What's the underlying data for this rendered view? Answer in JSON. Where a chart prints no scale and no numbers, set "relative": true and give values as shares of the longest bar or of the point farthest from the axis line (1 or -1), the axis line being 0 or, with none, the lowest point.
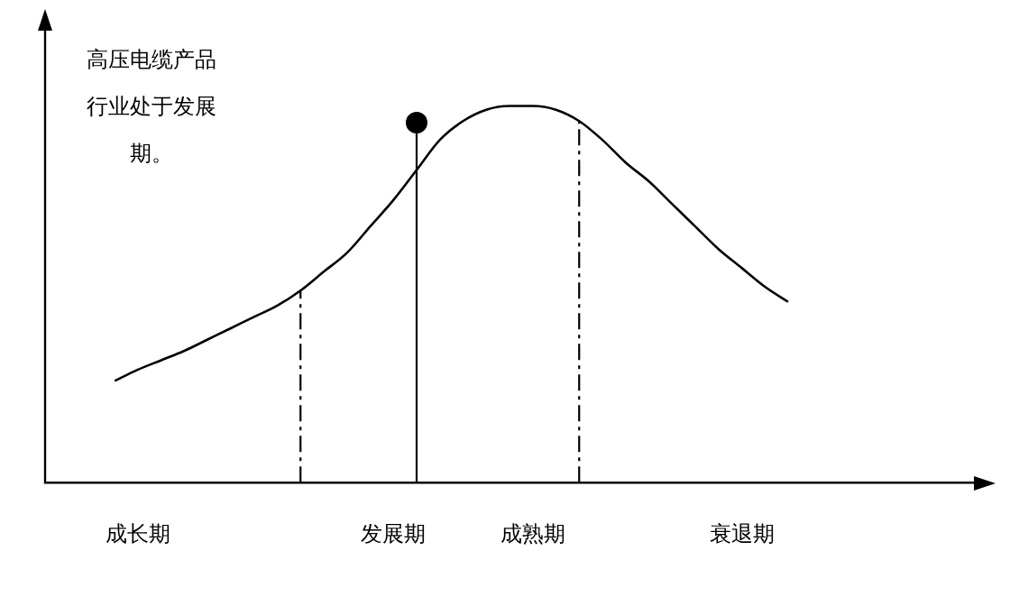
{
  "chart_data": {
    "type": "line",
    "relative": true,
    "categories": [
      null,
      null,
      null,
      null,
      "成长期",
      null,
      null,
      null,
      null,
      null,
      null,
      null,
      null,
      null,
      null,
      "发展期",
      null,
      null,
      null,
      null,
      null,
      "成熟期",
      null,
      null,
      null,
      null,
      null,
      null,
      null,
      null,
      "衰退期",
      null,
      null,
      null,
      null,
      null,
      null,
      null,
      null,
      null,
      null
    ],
    "series": [
      {
        "color": "#000000",
        "values": [
          null,
          null,
          null,
          0.27,
          0.3,
          0.325,
          0.35,
          0.38,
          0.41,
          0.44,
          0.47,
          0.51,
          0.56,
          0.61,
          0.68,
          0.75,
          0.83,
          0.91,
          0.96,
          0.99,
          1,
          1,
          0.99,
          0.96,
          0.91,
          0.85,
          0.8,
          0.74,
          0.68,
          0.62,
          0.57,
          0.52,
          0.48,
          null,
          null,
          null,
          null,
          null,
          null,
          null,
          null
        ]
      }
    ],
    "annotations": [
      "高压电缆产品行业处于发展期。"
    ],
    "tick_labels": "x",
    "grid": false,
    "legend": false,
    "marker": "none",
    "line_style": "solid"
  }
}
